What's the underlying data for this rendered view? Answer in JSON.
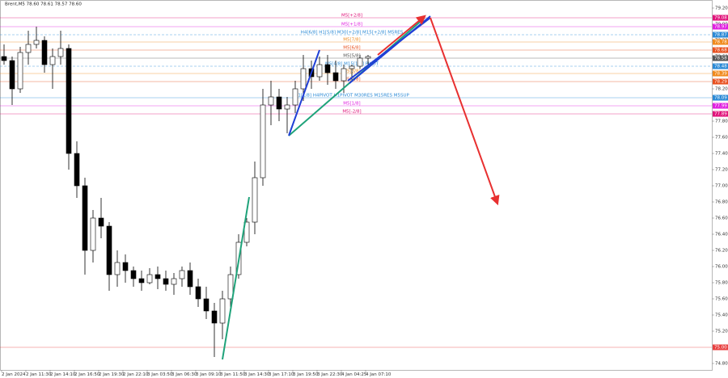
{
  "chart_data": {
    "type": "candlestick",
    "title": "Brent,M5 78.60 78.61 78.57 78.60",
    "categories": [
      "2 Jan 2024",
      null,
      null,
      "2 Jan 11:30",
      null,
      null,
      "2 Jan 14:10",
      null,
      null,
      "2 Jan 16:50",
      null,
      null,
      "2 Jan 19:30",
      null,
      null,
      "2 Jan 22:10",
      null,
      null,
      "3 Jan 03:50",
      null,
      null,
      "3 Jan 06:30",
      null,
      null,
      "3 Jan 09:10",
      null,
      null,
      "3 Jan 11:50",
      null,
      null,
      "3 Jan 14:30",
      null,
      null,
      "3 Jan 17:10",
      null,
      null,
      "3 Jan 19:50",
      null,
      null,
      "3 Jan 22:30",
      null,
      null,
      "4 Jan 04:25",
      null,
      null,
      "4 Jan 07:10"
    ],
    "ohlc": [
      [
        78.6,
        78.75,
        78.5,
        78.55
      ],
      [
        78.55,
        78.6,
        78.0,
        78.2
      ],
      [
        78.2,
        78.72,
        78.15,
        78.65
      ],
      [
        78.65,
        78.92,
        78.5,
        78.75
      ],
      [
        78.75,
        78.97,
        78.7,
        78.8
      ],
      [
        78.8,
        78.85,
        78.4,
        78.5
      ],
      [
        78.5,
        78.7,
        78.2,
        78.6
      ],
      [
        78.6,
        78.92,
        78.5,
        78.7
      ],
      [
        78.7,
        78.75,
        77.2,
        77.4
      ],
      [
        77.4,
        77.55,
        76.85,
        77.0
      ],
      [
        77.0,
        77.1,
        75.9,
        76.2
      ],
      [
        76.2,
        76.7,
        76.05,
        76.6
      ],
      [
        76.6,
        76.85,
        76.35,
        76.5
      ],
      [
        76.5,
        76.55,
        75.7,
        75.9
      ],
      [
        75.9,
        76.2,
        75.75,
        76.05
      ],
      [
        76.05,
        76.15,
        75.8,
        75.95
      ],
      [
        75.95,
        76.0,
        75.75,
        75.85
      ],
      [
        75.85,
        75.95,
        75.7,
        75.8
      ],
      [
        75.8,
        75.98,
        75.78,
        75.9
      ],
      [
        75.9,
        76.0,
        75.72,
        75.85
      ],
      [
        75.85,
        75.95,
        75.7,
        75.78
      ],
      [
        75.78,
        75.92,
        75.65,
        75.85
      ],
      [
        75.85,
        76.0,
        75.75,
        75.95
      ],
      [
        75.95,
        76.05,
        75.65,
        75.75
      ],
      [
        75.75,
        75.85,
        75.5,
        75.6
      ],
      [
        75.6,
        75.75,
        75.35,
        75.45
      ],
      [
        75.45,
        75.55,
        74.88,
        75.3
      ],
      [
        75.3,
        75.7,
        75.1,
        75.6
      ],
      [
        75.6,
        76.0,
        75.5,
        75.9
      ],
      [
        75.9,
        76.4,
        75.85,
        76.3
      ],
      [
        76.3,
        76.6,
        76.25,
        76.55
      ],
      [
        76.55,
        77.3,
        76.4,
        77.1
      ],
      [
        77.1,
        78.2,
        77.0,
        78.0
      ],
      [
        78.0,
        78.3,
        77.75,
        78.1
      ],
      [
        78.1,
        78.2,
        77.8,
        77.95
      ],
      [
        77.95,
        78.1,
        77.65,
        78.0
      ],
      [
        78.0,
        78.3,
        77.9,
        78.2
      ],
      [
        78.2,
        78.62,
        78.05,
        78.45
      ],
      [
        78.45,
        78.55,
        78.2,
        78.35
      ],
      [
        78.35,
        78.6,
        78.3,
        78.5
      ],
      [
        78.5,
        78.62,
        78.25,
        78.4
      ],
      [
        78.4,
        78.55,
        78.2,
        78.3
      ],
      [
        78.3,
        78.5,
        78.15,
        78.45
      ],
      [
        78.45,
        78.5,
        78.3,
        78.48
      ],
      [
        78.48,
        78.62,
        78.45,
        78.58
      ],
      [
        78.58,
        78.62,
        78.5,
        78.6
      ]
    ],
    "ylim": [
      74.72,
      79.3
    ],
    "yticks": [
      {
        "value": 79.2,
        "label": "79.20"
      },
      {
        "value": 79.0,
        "label": "79.00"
      },
      {
        "value": 78.8,
        "label": "78.80"
      },
      {
        "value": 78.6,
        "label": "78.60"
      },
      {
        "value": 78.4,
        "label": "78.40"
      },
      {
        "value": 78.2,
        "label": "78.20"
      },
      {
        "value": 78.0,
        "label": "78.00"
      },
      {
        "value": 77.8,
        "label": "77.80"
      },
      {
        "value": 77.6,
        "label": "77.60"
      },
      {
        "value": 77.4,
        "label": "77.40"
      },
      {
        "value": 77.2,
        "label": "77.20"
      },
      {
        "value": 77.0,
        "label": "77.00"
      },
      {
        "value": 76.8,
        "label": "76.80"
      },
      {
        "value": 76.6,
        "label": "76.60"
      },
      {
        "value": 76.4,
        "label": "76.40"
      },
      {
        "value": 76.2,
        "label": "76.20"
      },
      {
        "value": 76.0,
        "label": "76.00"
      },
      {
        "value": 75.8,
        "label": "75.80"
      },
      {
        "value": 75.6,
        "label": "75.60"
      },
      {
        "value": 75.4,
        "label": "75.40"
      },
      {
        "value": 75.2,
        "label": "75.20"
      },
      {
        "value": 74.8,
        "label": "74.80"
      }
    ],
    "levels": [
      {
        "name": "M5[+2/8]",
        "value": 79.08,
        "label": "79.08",
        "color": "#e0137a"
      },
      {
        "name": "M5[+1/8]",
        "value": 78.97,
        "label": "78.97",
        "color": "#e020e0"
      },
      {
        "name": "H4[6/8] H1[5/8] M30[+2/8] M15[+2/8] M5RES",
        "value": 78.87,
        "label": "78.87",
        "color": "#2b8ad6",
        "dashed": true
      },
      {
        "name": "M5[7/8]",
        "value": 78.78,
        "label": "78.78",
        "color": "#f08a1c"
      },
      {
        "name": "M5[6/8]",
        "value": 78.68,
        "label": "78.68",
        "color": "#e8501e"
      },
      {
        "name": "M5[5/8]",
        "value": 78.58,
        "label": "78.58",
        "color": "#555555"
      },
      {
        "name": "M5[4/8] M15[1/8] PIVOT",
        "value": 78.48,
        "label": "78.48",
        "color": "#2b8ad6",
        "dashed": true
      },
      {
        "name": "M5[3/8]",
        "value": 78.39,
        "label": "78.39",
        "color": "#f08a1c"
      },
      {
        "name": "M5[2/8]",
        "value": 78.29,
        "label": "78.29",
        "color": "#e8501e"
      },
      {
        "name": "D1[1/8] H4PIVOT H1PIVOT M30RES M15RES M5SUP",
        "value": 78.09,
        "label": "78.09",
        "color": "#2b8ad6"
      },
      {
        "name": "M5[1/8]",
        "value": 77.99,
        "label": "77.99",
        "color": "#e020e0"
      },
      {
        "name": "M5[-2/8]",
        "value": 77.89,
        "label": "77.89",
        "color": "#e0137a"
      },
      {
        "value": 75.0,
        "label": "75.00",
        "color": "#e84040"
      }
    ],
    "drawings": [
      {
        "color": "#1fa37a",
        "x": [
          27.0,
          30.3
        ],
        "y": [
          74.85,
          76.86
        ]
      },
      {
        "color": "#1fa37a",
        "x": [
          35.2,
          52.0
        ],
        "y": [
          77.62,
          79.08
        ]
      },
      {
        "color": "#1f3fd6",
        "x": [
          35.2,
          39.0
        ],
        "y": [
          77.62,
          78.68
        ]
      },
      {
        "color": "#1f3fd6",
        "x": [
          42.5,
          52.7
        ],
        "y": [
          78.3,
          79.08
        ]
      },
      {
        "color": "#1f3fd6",
        "x": [
          42.7,
          52.7
        ],
        "y": [
          78.27,
          79.1
        ]
      },
      {
        "color": "#e83030",
        "x": [
          46.2,
          52.0
        ],
        "y": [
          78.62,
          79.1
        ],
        "arrow": true
      },
      {
        "color": "#e83030",
        "x": [
          52.7,
          61.0
        ],
        "y": [
          79.08,
          76.78
        ],
        "arrow": true
      }
    ]
  }
}
